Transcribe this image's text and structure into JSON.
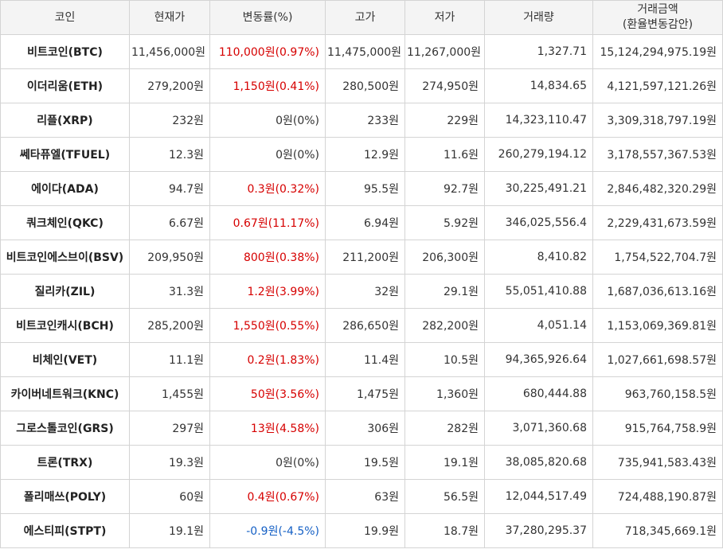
{
  "headers": {
    "coin": "코인",
    "price": "현재가",
    "change": "변동률(%)",
    "high": "고가",
    "low": "저가",
    "volume": "거래량",
    "amount_line1": "거래금액",
    "amount_line2": "(환율변동감안)"
  },
  "colors": {
    "up": "#d60000",
    "down": "#1560c5",
    "flat": "#333333",
    "header_bg": "#f4f4f4",
    "border": "#d4d4d4"
  },
  "rows": [
    {
      "name": "비트코인(BTC)",
      "price": "11,456,000원",
      "change": "110,000원(0.97%)",
      "dir": "up",
      "high": "11,475,000원",
      "low": "11,267,000원",
      "volume": "1,327.71",
      "amount": "15,124,294,975.19원"
    },
    {
      "name": "이더리움(ETH)",
      "price": "279,200원",
      "change": "1,150원(0.41%)",
      "dir": "up",
      "high": "280,500원",
      "low": "274,950원",
      "volume": "14,834.65",
      "amount": "4,121,597,121.26원"
    },
    {
      "name": "리플(XRP)",
      "price": "232원",
      "change": "0원(0%)",
      "dir": "flat",
      "high": "233원",
      "low": "229원",
      "volume": "14,323,110.47",
      "amount": "3,309,318,797.19원"
    },
    {
      "name": "쎄타퓨엘(TFUEL)",
      "price": "12.3원",
      "change": "0원(0%)",
      "dir": "flat",
      "high": "12.9원",
      "low": "11.6원",
      "volume": "260,279,194.12",
      "amount": "3,178,557,367.53원"
    },
    {
      "name": "에이다(ADA)",
      "price": "94.7원",
      "change": "0.3원(0.32%)",
      "dir": "up",
      "high": "95.5원",
      "low": "92.7원",
      "volume": "30,225,491.21",
      "amount": "2,846,482,320.29원"
    },
    {
      "name": "쿼크체인(QKC)",
      "price": "6.67원",
      "change": "0.67원(11.17%)",
      "dir": "up",
      "high": "6.94원",
      "low": "5.92원",
      "volume": "346,025,556.4",
      "amount": "2,229,431,673.59원"
    },
    {
      "name": "비트코인에스브이(BSV)",
      "price": "209,950원",
      "change": "800원(0.38%)",
      "dir": "up",
      "high": "211,200원",
      "low": "206,300원",
      "volume": "8,410.82",
      "amount": "1,754,522,704.7원"
    },
    {
      "name": "질리카(ZIL)",
      "price": "31.3원",
      "change": "1.2원(3.99%)",
      "dir": "up",
      "high": "32원",
      "low": "29.1원",
      "volume": "55,051,410.88",
      "amount": "1,687,036,613.16원"
    },
    {
      "name": "비트코인캐시(BCH)",
      "price": "285,200원",
      "change": "1,550원(0.55%)",
      "dir": "up",
      "high": "286,650원",
      "low": "282,200원",
      "volume": "4,051.14",
      "amount": "1,153,069,369.81원"
    },
    {
      "name": "비체인(VET)",
      "price": "11.1원",
      "change": "0.2원(1.83%)",
      "dir": "up",
      "high": "11.4원",
      "low": "10.5원",
      "volume": "94,365,926.64",
      "amount": "1,027,661,698.57원"
    },
    {
      "name": "카이버네트워크(KNC)",
      "price": "1,455원",
      "change": "50원(3.56%)",
      "dir": "up",
      "high": "1,475원",
      "low": "1,360원",
      "volume": "680,444.88",
      "amount": "963,760,158.5원"
    },
    {
      "name": "그로스톨코인(GRS)",
      "price": "297원",
      "change": "13원(4.58%)",
      "dir": "up",
      "high": "306원",
      "low": "282원",
      "volume": "3,071,360.68",
      "amount": "915,764,758.9원"
    },
    {
      "name": "트론(TRX)",
      "price": "19.3원",
      "change": "0원(0%)",
      "dir": "flat",
      "high": "19.5원",
      "low": "19.1원",
      "volume": "38,085,820.68",
      "amount": "735,941,583.43원"
    },
    {
      "name": "폴리매쓰(POLY)",
      "price": "60원",
      "change": "0.4원(0.67%)",
      "dir": "up",
      "high": "63원",
      "low": "56.5원",
      "volume": "12,044,517.49",
      "amount": "724,488,190.87원"
    },
    {
      "name": "에스티피(STPT)",
      "price": "19.1원",
      "change": "-0.9원(-4.5%)",
      "dir": "down",
      "high": "19.9원",
      "low": "18.7원",
      "volume": "37,280,295.37",
      "amount": "718,345,669.1원"
    }
  ]
}
